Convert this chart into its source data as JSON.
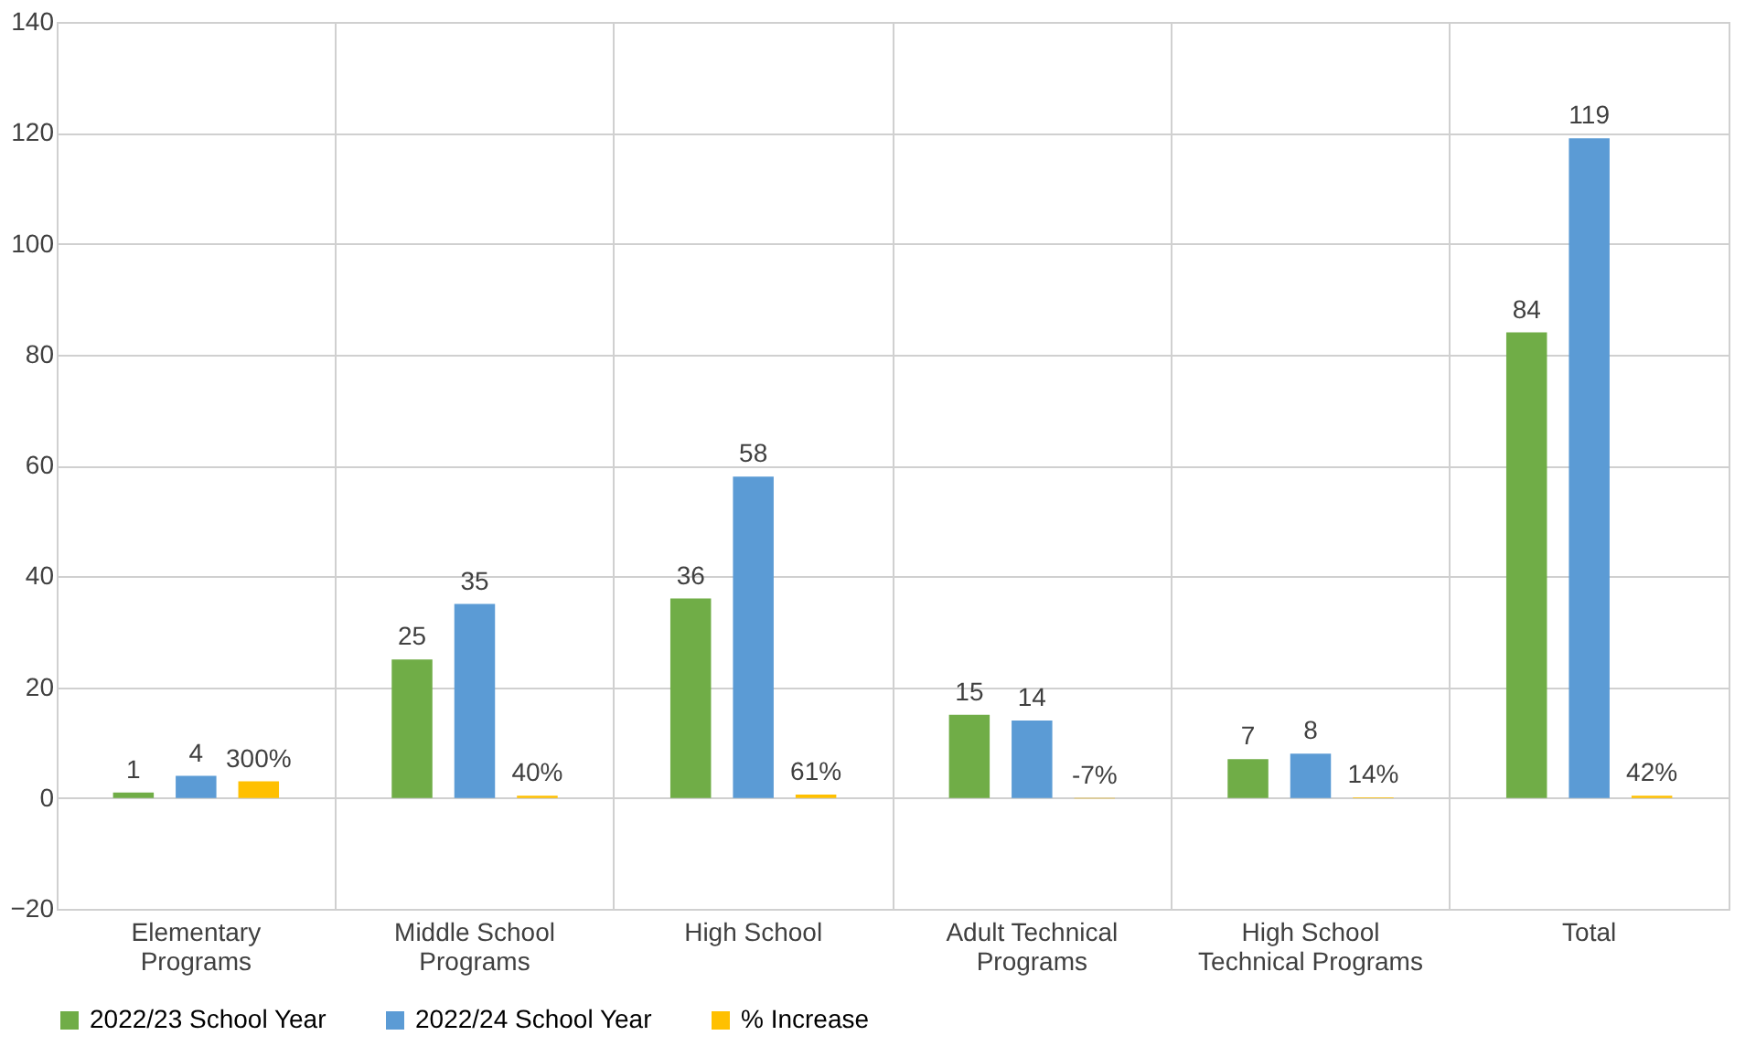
{
  "chart_data": {
    "type": "bar",
    "categories": [
      "Elementary Programs",
      "Middle School Programs",
      "High School",
      "Adult Technical Programs",
      "High School Technical Programs",
      "Total"
    ],
    "series": [
      {
        "name": "2022/23 School Year",
        "color": "#70ad47",
        "values": [
          1,
          25,
          36,
          15,
          7,
          84
        ],
        "value_labels": [
          "1",
          "25",
          "36",
          "15",
          "7",
          "84"
        ]
      },
      {
        "name": "2022/24 School Year",
        "color": "#5b9bd5",
        "values": [
          4,
          35,
          58,
          14,
          8,
          119
        ],
        "value_labels": [
          "4",
          "35",
          "58",
          "14",
          "8",
          "119"
        ]
      },
      {
        "name": "% Increase",
        "color": "#ffc000",
        "values": [
          3,
          0.4,
          0.61,
          -0.07,
          0.14,
          0.42
        ],
        "value_labels": [
          "300%",
          "40%",
          "61%",
          "-7%",
          "14%",
          "42%"
        ]
      }
    ],
    "ylim": [
      -20,
      140
    ],
    "yticks": [
      -20,
      0,
      20,
      40,
      60,
      80,
      100,
      120,
      140
    ],
    "grid": true,
    "legend": "bottom"
  }
}
